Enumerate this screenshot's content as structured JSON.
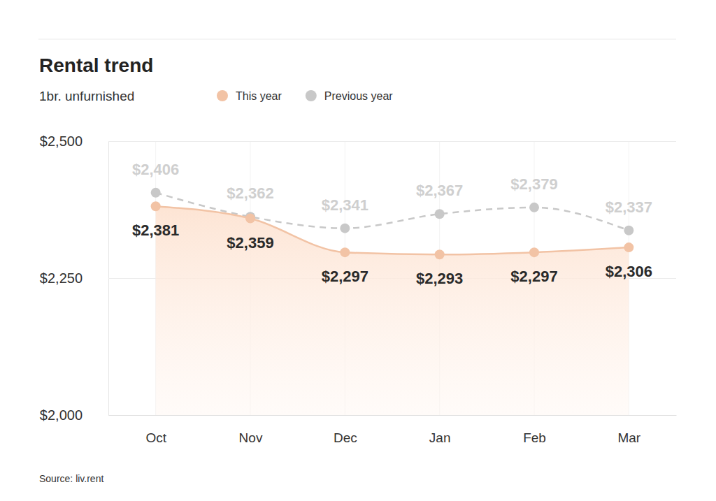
{
  "chart_data": {
    "type": "line",
    "title": "Rental trend",
    "subtitle": "1br. unfurnished",
    "source": "Source: liv.rent",
    "categories": [
      "Oct",
      "Nov",
      "Dec",
      "Jan",
      "Feb",
      "Mar"
    ],
    "series": [
      {
        "name": "This year",
        "type": "area",
        "color": "#f2c3a5",
        "line_style": "solid",
        "marker": "circle",
        "values": [
          2381,
          2359,
          2297,
          2293,
          2297,
          2306
        ],
        "value_labels": [
          "$2,381",
          "$2,359",
          "$2,297",
          "$2,293",
          "$2,297",
          "$2,306"
        ]
      },
      {
        "name": "Previous year",
        "type": "line",
        "color": "#c8c8c8",
        "line_style": "dashed",
        "marker": "circle",
        "values": [
          2406,
          2362,
          2341,
          2367,
          2379,
          2337
        ],
        "value_labels": [
          "$2,406",
          "$2,362",
          "$2,341",
          "$2,367",
          "$2,379",
          "$2,337"
        ]
      }
    ],
    "ylim": [
      2000,
      2500
    ],
    "yticks": [
      {
        "value": 2000,
        "label": "$2,000"
      },
      {
        "value": 2250,
        "label": "$2,250"
      },
      {
        "value": 2500,
        "label": "$2,500"
      }
    ],
    "grid": true,
    "legend": "top",
    "data_labels": true
  }
}
